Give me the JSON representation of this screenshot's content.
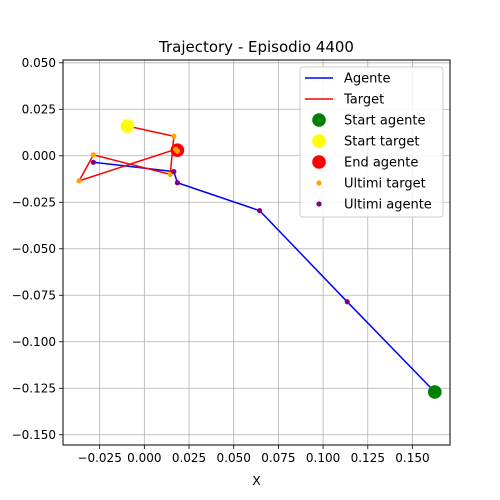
{
  "chart_data": {
    "type": "line",
    "title": "Trajectory - Episodio 4400",
    "xlabel": "X",
    "ylabel": "",
    "xlim": [
      -0.0455,
      0.171
    ],
    "ylim": [
      -0.1555,
      0.0515
    ],
    "xticks": [
      -0.025,
      0.0,
      0.025,
      0.05,
      0.075,
      0.1,
      0.125,
      0.15
    ],
    "xtick_labels": [
      "−0.025",
      "0.000",
      "0.025",
      "0.050",
      "0.075",
      "0.100",
      "0.125",
      "0.150"
    ],
    "yticks": [
      0.05,
      0.025,
      0.0,
      -0.025,
      -0.05,
      -0.075,
      -0.1,
      -0.125,
      -0.15
    ],
    "ytick_labels": [
      "0.050",
      "0.025",
      "0.000",
      "−0.025",
      "−0.050",
      "−0.075",
      "−0.100",
      "−0.125",
      "−0.150"
    ],
    "grid": true,
    "legend_position": "top-right",
    "series": [
      {
        "name": "Agente",
        "kind": "line",
        "color": "#0000ff",
        "x": [
          0.1625,
          0.1135,
          0.0645,
          0.0185,
          0.0165,
          -0.0285
        ],
        "y": [
          -0.127,
          -0.0785,
          -0.0295,
          -0.0145,
          -0.0085,
          -0.0035
        ]
      },
      {
        "name": "Target",
        "kind": "line",
        "color": "#ff0000",
        "x": [
          -0.0095,
          0.0165,
          0.0145,
          -0.0285,
          -0.0365,
          0.0175,
          0.0185
        ],
        "y": [
          0.016,
          0.0105,
          -0.01,
          0.0005,
          -0.0135,
          0.0035,
          0.0025
        ]
      },
      {
        "name": "Start agente",
        "kind": "point",
        "color": "#008000",
        "x": [
          0.1625
        ],
        "y": [
          -0.127
        ]
      },
      {
        "name": "Start target",
        "kind": "point",
        "color": "#ffff00",
        "x": [
          -0.0095
        ],
        "y": [
          0.016
        ]
      },
      {
        "name": "End agente",
        "kind": "point",
        "color": "#ff0000",
        "x": [
          0.0185
        ],
        "y": [
          0.003
        ]
      },
      {
        "name": "Ultimi target",
        "kind": "small-point",
        "color": "#ffa500",
        "x": [
          0.0165,
          0.0145,
          -0.0285,
          -0.0365,
          0.0175,
          0.0185
        ],
        "y": [
          0.0105,
          -0.01,
          0.0005,
          -0.0135,
          0.0035,
          0.0025
        ]
      },
      {
        "name": "Ultimi agente",
        "kind": "small-point",
        "color": "#800080",
        "x": [
          0.1135,
          0.0645,
          0.0185,
          0.0165,
          -0.0285
        ],
        "y": [
          -0.0785,
          -0.0295,
          -0.0145,
          -0.0085,
          -0.0035
        ]
      }
    ]
  }
}
